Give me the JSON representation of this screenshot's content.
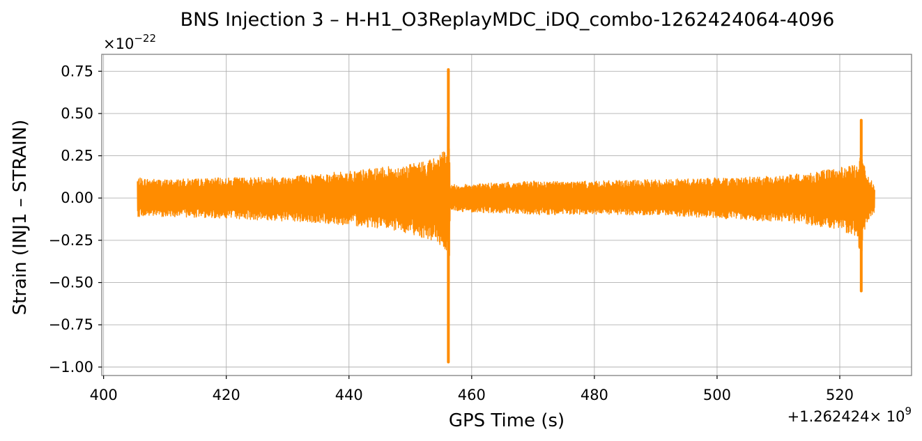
{
  "chart_data": {
    "type": "line",
    "title": "BNS Injection 3 – H-H1_O3ReplayMDC_iDQ_combo-1262424064-4096",
    "xlabel": "GPS Time (s)",
    "ylabel": "Strain (INJ1 – STRAIN)",
    "x_offset_label": "+1.262424",
    "x_offset_exponent_label": "× 10",
    "x_offset_exponent": "9",
    "y_scale_base": "×10",
    "y_scale_exponent": "−22",
    "xlim": [
      399.7,
      531.7
    ],
    "ylim": [
      -1.05,
      0.85
    ],
    "x_ticks": [
      400,
      420,
      440,
      460,
      480,
      500,
      520
    ],
    "x_tick_labels": [
      "400",
      "420",
      "440",
      "460",
      "480",
      "500",
      "520"
    ],
    "y_ticks": [
      0.75,
      0.5,
      0.25,
      0.0,
      -0.25,
      -0.5,
      -0.75,
      -1.0
    ],
    "y_tick_labels": [
      "0.75",
      "0.50",
      "0.25",
      "0.00",
      "−0.25",
      "−0.50",
      "−0.75",
      "−1.00"
    ],
    "grid": true,
    "legend": "none",
    "series": [
      {
        "color": "#ff8c00",
        "x_start": 405.5,
        "x_end": 525.7,
        "envelope": {
          "x": [
            405.5,
            410,
            420,
            430,
            440,
            445,
            450,
            454,
            455.5,
            456.0,
            456.2,
            456.5,
            458,
            470,
            480,
            490,
            500,
            510,
            515,
            520,
            523,
            523.5,
            523.8,
            524.5,
            525.7
          ],
          "upper": [
            0.12,
            0.11,
            0.12,
            0.13,
            0.16,
            0.18,
            0.2,
            0.24,
            0.28,
            0.3,
            0.76,
            0.08,
            0.08,
            0.1,
            0.1,
            0.11,
            0.12,
            0.13,
            0.15,
            0.18,
            0.2,
            0.46,
            0.22,
            0.14,
            0.08
          ],
          "lower": [
            -0.11,
            -0.11,
            -0.12,
            -0.14,
            -0.16,
            -0.18,
            -0.21,
            -0.26,
            -0.3,
            -0.34,
            -0.97,
            -0.07,
            -0.08,
            -0.1,
            -0.1,
            -0.1,
            -0.12,
            -0.14,
            -0.16,
            -0.19,
            -0.23,
            -0.55,
            -0.26,
            -0.14,
            -0.08
          ]
        }
      }
    ]
  }
}
